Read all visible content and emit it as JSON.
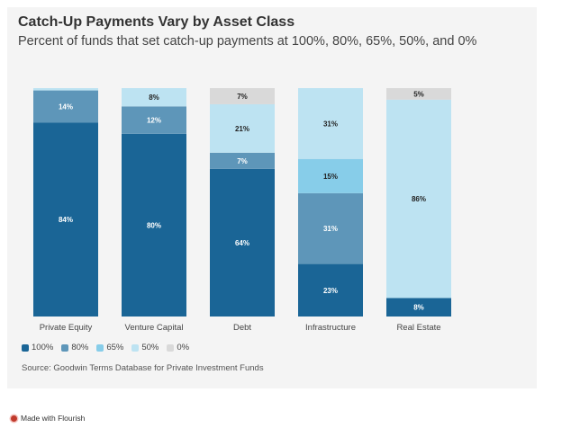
{
  "chart_data": {
    "type": "bar",
    "stacked": true,
    "orientation": "vertical",
    "title": "Catch-Up Payments Vary by Asset Class",
    "subtitle": "Percent of funds that set catch-up payments at 100%, 80%, 65%, 50%, and 0%",
    "categories": [
      "Private Equity",
      "Venture Capital",
      "Debt",
      "Infrastructure",
      "Real Estate"
    ],
    "series": [
      {
        "name": "100%",
        "color": "#1a6596",
        "values": [
          84,
          80,
          64,
          23,
          8
        ]
      },
      {
        "name": "80%",
        "color": "#5e96b9",
        "values": [
          14,
          12,
          7,
          31,
          0
        ]
      },
      {
        "name": "65%",
        "color": "#87cde9",
        "values": [
          0,
          0,
          0,
          15,
          0
        ]
      },
      {
        "name": "50%",
        "color": "#bde3f2",
        "values": [
          1,
          8,
          21,
          31,
          86
        ]
      },
      {
        "name": "0%",
        "color": "#d9d9d9",
        "values": [
          0,
          0,
          7,
          0,
          5
        ]
      }
    ],
    "legend_position": "bottom-left",
    "source": "Source: Goodwin Terms Database for Private Investment Funds"
  },
  "footer": {
    "made_with": "Made with Flourish"
  }
}
